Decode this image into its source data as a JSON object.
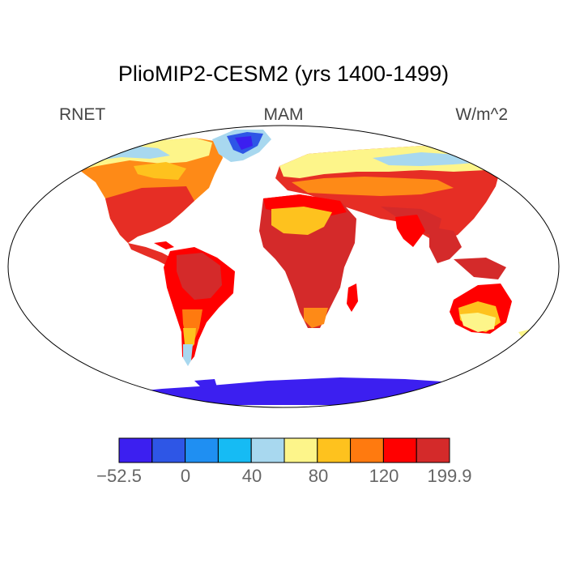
{
  "title": "PlioMIP2-CESM2 (yrs 1400-1499)",
  "left_label": "RNET",
  "center_label": "MAM",
  "right_label": "W/m^2",
  "colorbar": {
    "colors": [
      "#3c1ff0",
      "#2e56e6",
      "#1f8ff2",
      "#16bbf4",
      "#a8d8ef",
      "#fdf58a",
      "#fec21e",
      "#ff7a0f",
      "#ff0000",
      "#d42a2a"
    ],
    "tick_labels": [
      "−52.5",
      "0",
      "40",
      "80",
      "120",
      "199.9"
    ]
  },
  "ocean_color": "#ffffff",
  "outline_color": "#000000"
}
